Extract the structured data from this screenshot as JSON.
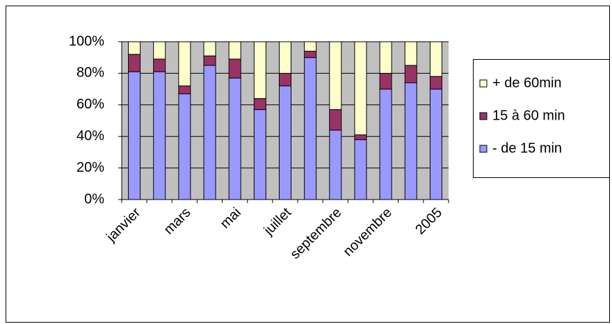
{
  "chart_data": {
    "type": "bar",
    "stacked": true,
    "categories": [
      "janvier",
      null,
      "mars",
      null,
      "mai",
      null,
      "juillet",
      null,
      "septembre",
      null,
      "novembre",
      null,
      "2005"
    ],
    "series": [
      {
        "name": "- de 15 min",
        "color": "#9999ff",
        "values": [
          81,
          81,
          67,
          85,
          77,
          57,
          72,
          90,
          44,
          38,
          70,
          74,
          70
        ]
      },
      {
        "name": "15 à 60 min",
        "color": "#993366",
        "values": [
          11,
          8,
          5,
          6,
          12,
          7,
          8,
          4,
          13,
          3,
          10,
          11,
          8
        ]
      },
      {
        "name": "+ de 60min",
        "color": "#ffffcc",
        "values": [
          8,
          11,
          28,
          9,
          11,
          36,
          20,
          6,
          43,
          59,
          20,
          15,
          22
        ]
      }
    ],
    "ylim": [
      0,
      100
    ],
    "yticks": [
      {
        "value": 0,
        "label": "0%"
      },
      {
        "value": 20,
        "label": "20%"
      },
      {
        "value": 40,
        "label": "40%"
      },
      {
        "value": 60,
        "label": "60%"
      },
      {
        "value": 80,
        "label": "80%"
      },
      {
        "value": 100,
        "label": "100%"
      }
    ],
    "grid": true,
    "plot_background": "#c0c0c0",
    "legend": "right"
  }
}
